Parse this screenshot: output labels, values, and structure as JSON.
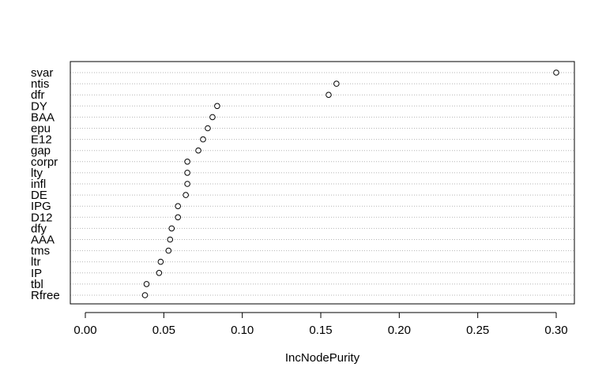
{
  "chart_data": {
    "type": "scatter",
    "title": "",
    "xlabel": "IncNodePurity",
    "ylabel": "",
    "xlim": [
      -0.005,
      0.31
    ],
    "xticks": [
      "0.00",
      "0.05",
      "0.10",
      "0.15",
      "0.20",
      "0.25",
      "0.30"
    ],
    "xtick_values": [
      0.0,
      0.05,
      0.1,
      0.15,
      0.2,
      0.25,
      0.3
    ],
    "grid": "horizontal dotted guide per variable",
    "categories": [
      "svar",
      "ntis",
      "dfr",
      "DY",
      "BAA",
      "epu",
      "E12",
      "gap",
      "corpr",
      "lty",
      "infl",
      "DE",
      "IPG",
      "D12",
      "dfy",
      "AAA",
      "tms",
      "ltr",
      "IP",
      "tbl",
      "Rfree"
    ],
    "values": [
      0.3,
      0.16,
      0.155,
      0.084,
      0.081,
      0.078,
      0.075,
      0.072,
      0.065,
      0.065,
      0.065,
      0.064,
      0.059,
      0.059,
      0.055,
      0.054,
      0.053,
      0.048,
      0.047,
      0.039,
      0.038
    ]
  }
}
